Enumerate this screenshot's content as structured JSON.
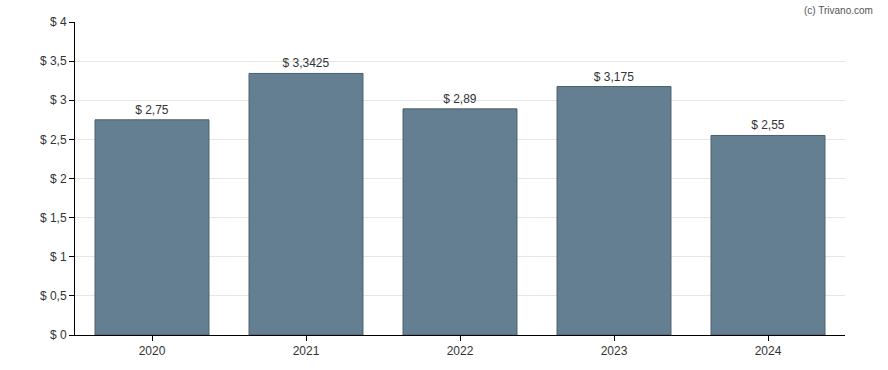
{
  "chart_data": {
    "type": "bar",
    "categories": [
      "2020",
      "2021",
      "2022",
      "2023",
      "2024"
    ],
    "values": [
      2.75,
      3.3425,
      2.89,
      3.175,
      2.55
    ],
    "value_labels": [
      "$ 2,75",
      "$ 3,3425",
      "$ 2,89",
      "$ 3,175",
      "$ 2,55"
    ],
    "data_labels": true,
    "color": "#647f91",
    "ylim": [
      0,
      4
    ],
    "yticks": [
      {
        "value": 0,
        "label": "$ 0"
      },
      {
        "value": 0.5,
        "label": "$ 0,5"
      },
      {
        "value": 1,
        "label": "$ 1"
      },
      {
        "value": 1.5,
        "label": "$ 1,5"
      },
      {
        "value": 2,
        "label": "$ 2"
      },
      {
        "value": 2.5,
        "label": "$ 2,5"
      },
      {
        "value": 3,
        "label": "$ 3"
      },
      {
        "value": 3.5,
        "label": "$ 3,5"
      },
      {
        "value": 4,
        "label": "$ 4"
      }
    ],
    "grid": true,
    "annotations": [
      "(c) Trivano.com"
    ]
  }
}
